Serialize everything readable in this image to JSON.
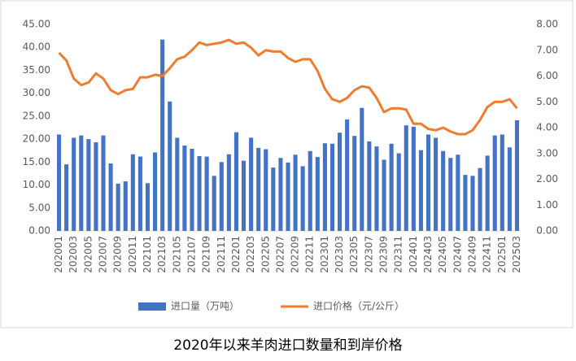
{
  "chart_data": {
    "type": "bar-line",
    "title": "2020年以来羊肉进口数量和到岸价格",
    "categories": [
      "202001",
      null,
      "202003",
      null,
      "202005",
      null,
      "202007",
      null,
      "202009",
      null,
      "202011",
      null,
      "202101",
      null,
      "202103",
      null,
      "202105",
      null,
      "202107",
      null,
      "202109",
      null,
      "202111",
      null,
      "202201",
      null,
      "202203",
      null,
      "202205",
      null,
      "202207",
      null,
      "202209",
      null,
      "202211",
      null,
      "202301",
      null,
      "202303",
      null,
      "202305",
      null,
      "202307",
      null,
      "202309",
      null,
      "202311",
      null,
      "202401",
      null,
      "202403",
      null,
      "202405",
      null,
      "202407",
      null,
      "202409",
      null,
      "202411",
      null,
      "202501",
      null,
      "202503"
    ],
    "series": [
      {
        "name": "进口量（万吨）",
        "type": "bar",
        "color": "#4472c4",
        "values": [
          21.0,
          14.5,
          20.3,
          20.8,
          20.0,
          19.3,
          20.8,
          14.7,
          10.3,
          10.8,
          16.7,
          16.2,
          10.4,
          17.1,
          41.7,
          28.2,
          20.3,
          18.6,
          17.9,
          16.3,
          16.2,
          12.0,
          15.0,
          16.7,
          21.5,
          15.3,
          20.3,
          18.1,
          17.8,
          13.8,
          15.9,
          14.9,
          16.6,
          14.1,
          17.4,
          16.1,
          19.1,
          19.0,
          21.4,
          24.3,
          20.7,
          26.8,
          19.5,
          18.4,
          15.5,
          19.0,
          16.9,
          23.0,
          22.7,
          17.6,
          21.0,
          20.3,
          17.4,
          15.9,
          16.6,
          12.2,
          12.0,
          13.7,
          16.4,
          20.8,
          21.0,
          18.2,
          24.1
        ]
      },
      {
        "name": "进口价格（元/公斤）",
        "type": "line",
        "axis": "y2",
        "color": "#ed7d31",
        "values": [
          6.9,
          6.6,
          5.9,
          5.65,
          5.75,
          6.1,
          5.9,
          5.45,
          5.3,
          5.45,
          5.5,
          5.95,
          5.95,
          6.05,
          6.0,
          6.3,
          6.65,
          6.75,
          7.0,
          7.3,
          7.2,
          7.25,
          7.3,
          7.4,
          7.25,
          7.3,
          7.1,
          6.8,
          7.0,
          6.95,
          6.95,
          6.7,
          6.55,
          6.65,
          6.65,
          6.2,
          5.5,
          5.1,
          5.0,
          5.15,
          5.45,
          5.6,
          5.55,
          5.15,
          4.6,
          4.75,
          4.75,
          4.7,
          4.15,
          4.15,
          3.95,
          3.9,
          4.0,
          3.85,
          3.75,
          3.75,
          3.9,
          4.3,
          4.8,
          5.0,
          5.0,
          5.1,
          4.75
        ]
      }
    ],
    "ylim": [
      0,
      45
    ],
    "yticks": [
      {
        "value": 0,
        "label": "0.00"
      },
      {
        "value": 5,
        "label": "5.00"
      },
      {
        "value": 10,
        "label": "10.00"
      },
      {
        "value": 15,
        "label": "15.00"
      },
      {
        "value": 20,
        "label": "20.00"
      },
      {
        "value": 25,
        "label": "25.00"
      },
      {
        "value": 30,
        "label": "30.00"
      },
      {
        "value": 35,
        "label": "35.00"
      },
      {
        "value": 40,
        "label": "40.00"
      },
      {
        "value": 45,
        "label": "45.00"
      }
    ],
    "y2lim": [
      0,
      8
    ],
    "y2ticks": [
      {
        "value": 0,
        "label": "0.00"
      },
      {
        "value": 1,
        "label": "1.00"
      },
      {
        "value": 2,
        "label": "2.00"
      },
      {
        "value": 3,
        "label": "3.00"
      },
      {
        "value": 4,
        "label": "4.00"
      },
      {
        "value": 5,
        "label": "5.00"
      },
      {
        "value": 6,
        "label": "6.00"
      },
      {
        "value": 7,
        "label": "7.00"
      },
      {
        "value": 8,
        "label": "8.00"
      }
    ],
    "grid": false,
    "legend": "bottom"
  }
}
